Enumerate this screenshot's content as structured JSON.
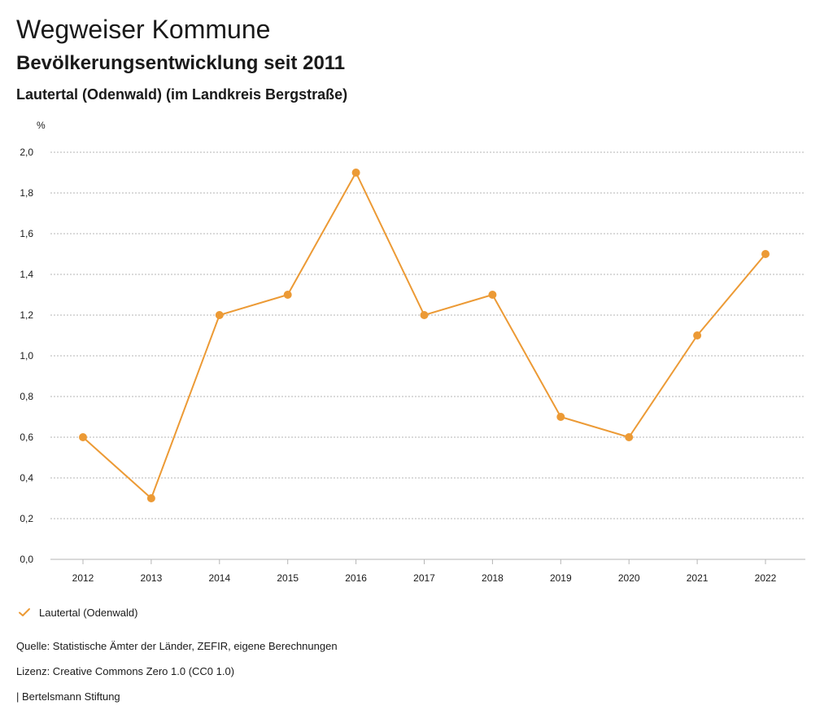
{
  "header": {
    "title": "Wegweiser Kommune",
    "subtitle": "Bevölkerungsentwicklung seit 2011",
    "place": "Lautertal (Odenwald) (im Landkreis Bergstraße)"
  },
  "chart_data": {
    "type": "line",
    "ylabel": "%",
    "ylim": [
      0,
      2.0
    ],
    "y_ticks": [
      "0,0",
      "0,2",
      "0,4",
      "0,6",
      "0,8",
      "1,0",
      "1,2",
      "1,4",
      "1,6",
      "1,8",
      "2,0"
    ],
    "y_tick_values": [
      0,
      0.2,
      0.4,
      0.6,
      0.8,
      1.0,
      1.2,
      1.4,
      1.6,
      1.8,
      2.0
    ],
    "categories": [
      "2012",
      "2013",
      "2014",
      "2015",
      "2016",
      "2017",
      "2018",
      "2019",
      "2020",
      "2021",
      "2022"
    ],
    "series": [
      {
        "name": "Lautertal (Odenwald)",
        "color": "#ec9a35",
        "values": [
          0.6,
          0.3,
          1.2,
          1.3,
          1.9,
          1.2,
          1.3,
          0.7,
          0.6,
          1.1,
          1.5
        ]
      }
    ],
    "grid": true,
    "legend_position": "bottom-left"
  },
  "legend": {
    "label": "Lautertal (Odenwald)",
    "icon": "check-icon"
  },
  "footer": {
    "source": "Quelle: Statistische Ämter der Länder, ZEFIR, eigene Berechnungen",
    "license": "Lizenz: Creative Commons Zero 1.0 (CC0 1.0)",
    "publisher": "| Bertelsmann Stiftung"
  }
}
